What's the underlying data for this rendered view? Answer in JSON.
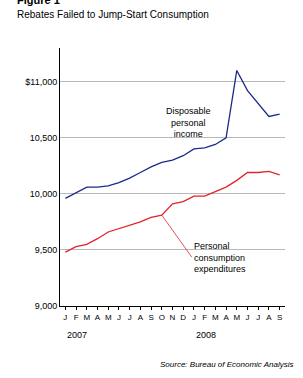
{
  "chart_data": {
    "type": "line",
    "title": "Figure 1",
    "subtitle": "Rebates Failed to Jump-Start Consumption",
    "source": "Source: Bureau of Economic Analysis",
    "categories": [
      "J",
      "F",
      "M",
      "A",
      "M",
      "J",
      "J",
      "A",
      "S",
      "O",
      "N",
      "D",
      "J",
      "F",
      "M",
      "A",
      "M",
      "J",
      "J",
      "A",
      "S"
    ],
    "groups": [
      {
        "label": "2007",
        "start": 0
      },
      {
        "label": "2008",
        "start": 12
      }
    ],
    "series": [
      {
        "name": "Disposable personal income",
        "color": "#1c2a8c",
        "values": [
          9960,
          10010,
          10060,
          10060,
          10070,
          10100,
          10140,
          10190,
          10240,
          10280,
          10300,
          10340,
          10400,
          10410,
          10440,
          10500,
          11100,
          10920,
          10800,
          10690,
          10710
        ]
      },
      {
        "name": "Personal consumption expenditures",
        "color": "#e0242b",
        "values": [
          9480,
          9530,
          9550,
          9600,
          9660,
          9690,
          9720,
          9750,
          9790,
          9810,
          9910,
          9930,
          9980,
          9980,
          10020,
          10060,
          10120,
          10190,
          10190,
          10200,
          10170
        ]
      }
    ],
    "ylim": [
      9000,
      11300
    ],
    "yticks": [
      {
        "value": 9000,
        "label": "9,000"
      },
      {
        "value": 9500,
        "label": "9,500"
      },
      {
        "value": 10000,
        "label": "10,000"
      },
      {
        "value": 10500,
        "label": "10,500"
      },
      {
        "value": 11000,
        "label": "$11,000"
      }
    ],
    "grid": true
  }
}
